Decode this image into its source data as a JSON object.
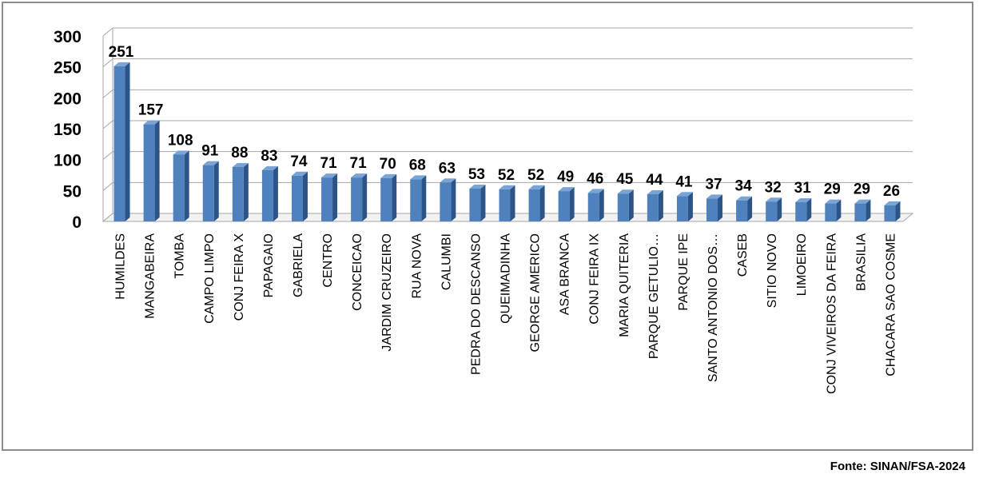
{
  "chart_data": {
    "type": "bar",
    "title": "",
    "xlabel": "",
    "ylabel": "",
    "ylim": [
      0,
      300
    ],
    "yticks": [
      0,
      50,
      100,
      150,
      200,
      250,
      300
    ],
    "grid": true,
    "legend": "none",
    "style": "3d-column",
    "categories": [
      "HUMILDES",
      "MANGABEIRA",
      "TOMBA",
      "CAMPO LIMPO",
      "CONJ FEIRA X",
      "PAPAGAIO",
      "GABRIELA",
      "CENTRO",
      "CONCEICAO",
      "JARDIM CRUZEIRO",
      "RUA NOVA",
      "CALUMBI",
      "PEDRA DO DESCANSO",
      "QUEIMADINHA",
      "GEORGE AMERICO",
      "ASA BRANCA",
      "CONJ FEIRA IX",
      "MARIA QUITERIA",
      "PARQUE GETULIO…",
      "PARQUE IPE",
      "SANTO ANTONIO DOS…",
      "CASEB",
      "SITIO NOVO",
      "LIMOEIRO",
      "CONJ VIVEIROS DA FEIRA",
      "BRASILIA",
      "CHACARA SAO COSME"
    ],
    "values": [
      251,
      157,
      108,
      91,
      88,
      83,
      74,
      71,
      71,
      70,
      68,
      63,
      53,
      52,
      52,
      49,
      46,
      45,
      44,
      41,
      37,
      34,
      32,
      31,
      29,
      29,
      26
    ],
    "colors": {
      "bar_front": "#4f81bd",
      "bar_side": "#2c5488",
      "bar_top": "#7aa3d6",
      "grid": "#a6a6a6"
    }
  },
  "source": "Fonte: SINAN/FSA-2024"
}
